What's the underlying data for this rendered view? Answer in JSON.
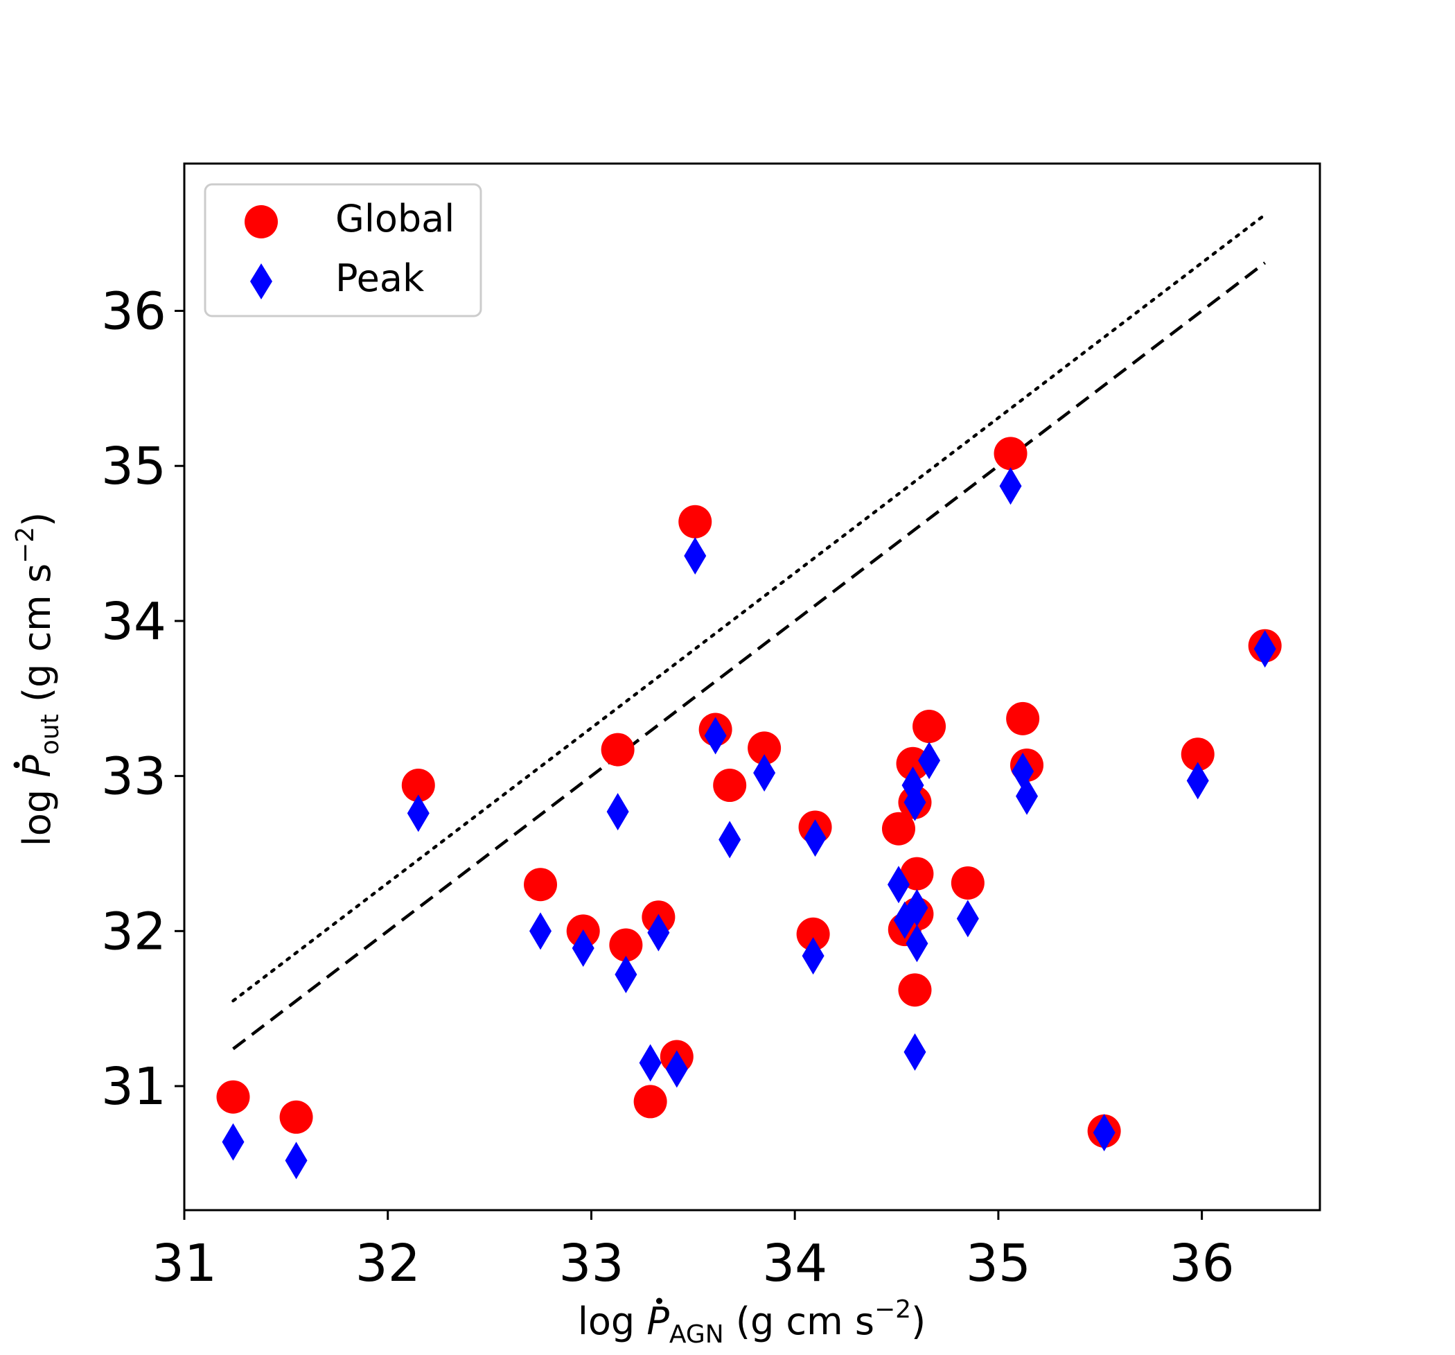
{
  "chart_data": {
    "type": "scatter",
    "xlabel": {
      "main": "log ",
      "symbol": "P",
      "sub": "AGN",
      "unit_open": " (g cm s",
      "sup": "−2",
      "unit_close": ")"
    },
    "ylabel": {
      "main": "log ",
      "symbol": "P",
      "sub": "out",
      "unit_open": " (g cm s",
      "sup": "−2",
      "unit_close": ")"
    },
    "xlim": [
      31.0,
      36.58
    ],
    "ylim": [
      30.2,
      36.95
    ],
    "xticks": [
      31,
      32,
      33,
      34,
      35,
      36
    ],
    "yticks": [
      31,
      32,
      33,
      34,
      35,
      36
    ],
    "grid": false,
    "legend": {
      "position": "top-left"
    },
    "series": [
      {
        "name": "Global",
        "marker": "circle",
        "color": "#ff0000",
        "points": [
          [
            31.24,
            30.93
          ],
          [
            31.55,
            30.8
          ],
          [
            32.15,
            32.94
          ],
          [
            32.75,
            32.3
          ],
          [
            32.96,
            32.0
          ],
          [
            33.13,
            33.17
          ],
          [
            33.17,
            31.91
          ],
          [
            33.29,
            30.9
          ],
          [
            33.33,
            32.09
          ],
          [
            33.42,
            31.19
          ],
          [
            33.51,
            34.64
          ],
          [
            33.61,
            33.3
          ],
          [
            33.68,
            32.94
          ],
          [
            33.85,
            33.18
          ],
          [
            34.09,
            31.98
          ],
          [
            34.1,
            32.67
          ],
          [
            34.51,
            32.66
          ],
          [
            34.54,
            32.01
          ],
          [
            34.58,
            33.08
          ],
          [
            34.59,
            32.83
          ],
          [
            34.59,
            31.62
          ],
          [
            34.6,
            32.37
          ],
          [
            34.6,
            32.11
          ],
          [
            34.66,
            33.32
          ],
          [
            34.85,
            32.31
          ],
          [
            35.06,
            35.08
          ],
          [
            35.12,
            33.37
          ],
          [
            35.14,
            33.07
          ],
          [
            35.52,
            30.71
          ],
          [
            35.98,
            33.14
          ],
          [
            36.31,
            33.84
          ]
        ]
      },
      {
        "name": "Peak",
        "marker": "diamond",
        "color": "#0000ff",
        "points": [
          [
            31.24,
            30.64
          ],
          [
            31.55,
            30.52
          ],
          [
            32.15,
            32.76
          ],
          [
            32.75,
            32.0
          ],
          [
            32.96,
            31.89
          ],
          [
            33.13,
            32.77
          ],
          [
            33.17,
            31.72
          ],
          [
            33.29,
            31.15
          ],
          [
            33.33,
            31.99
          ],
          [
            33.42,
            31.11
          ],
          [
            33.51,
            34.42
          ],
          [
            33.61,
            33.26
          ],
          [
            33.68,
            32.59
          ],
          [
            33.85,
            33.02
          ],
          [
            34.09,
            31.84
          ],
          [
            34.1,
            32.6
          ],
          [
            34.51,
            32.3
          ],
          [
            34.54,
            32.07
          ],
          [
            34.58,
            32.94
          ],
          [
            34.59,
            32.83
          ],
          [
            34.59,
            31.22
          ],
          [
            34.6,
            32.15
          ],
          [
            34.6,
            31.92
          ],
          [
            34.66,
            33.1
          ],
          [
            34.85,
            32.08
          ],
          [
            35.06,
            34.87
          ],
          [
            35.12,
            33.03
          ],
          [
            35.14,
            32.87
          ],
          [
            35.52,
            30.7
          ],
          [
            35.98,
            32.97
          ],
          [
            36.31,
            33.82
          ]
        ]
      }
    ],
    "reference_lines": [
      {
        "style": "dotted",
        "color": "#000000",
        "points": [
          [
            31.24,
            31.55
          ],
          [
            36.31,
            36.62
          ]
        ]
      },
      {
        "style": "dashed",
        "color": "#000000",
        "points": [
          [
            31.24,
            31.24
          ],
          [
            36.31,
            36.31
          ]
        ]
      }
    ]
  }
}
